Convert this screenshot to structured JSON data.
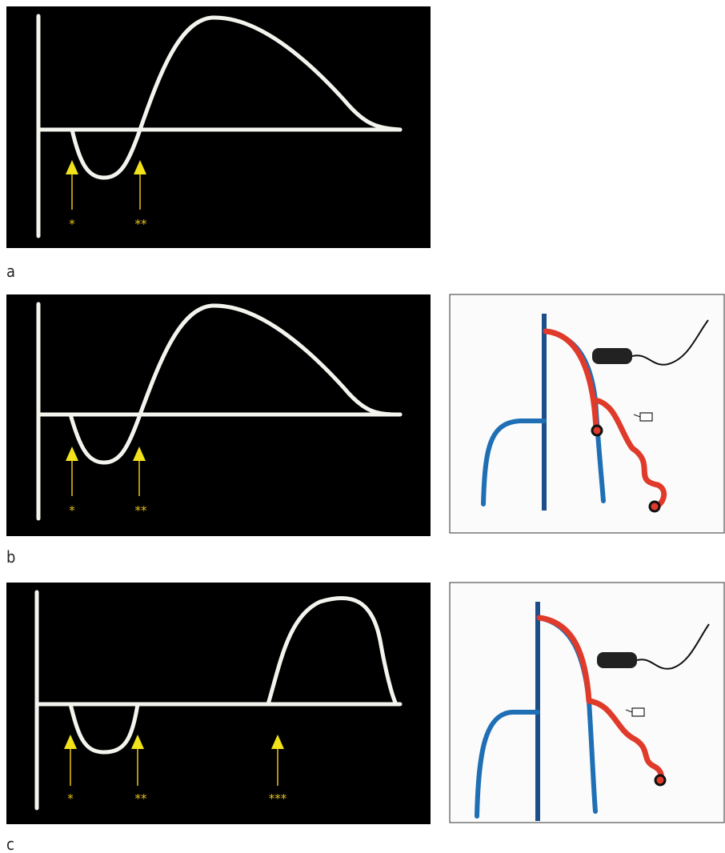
{
  "panels": [
    {
      "label": "a",
      "markers": [
        "*",
        "**"
      ]
    },
    {
      "label": "b",
      "markers": [
        "*",
        "**"
      ]
    },
    {
      "label": "c",
      "markers": [
        "*",
        "**",
        "***"
      ]
    }
  ]
}
